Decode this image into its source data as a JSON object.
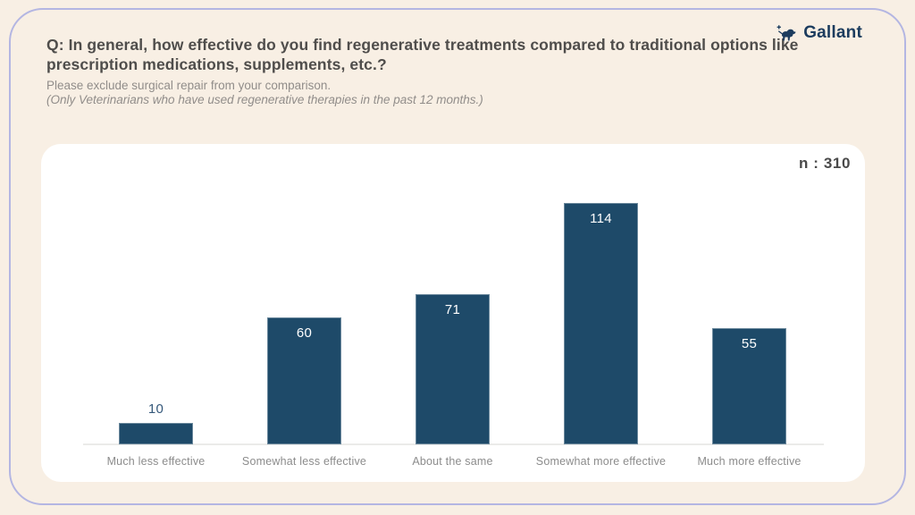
{
  "page": {
    "background_color": "#f8efe4",
    "frame_border_color": "#b4b6e2"
  },
  "header": {
    "question": "Q: In general, how effective do you find regenerative treatments compared to traditional options like prescription medications, supplements, etc.?",
    "instruction": "Please exclude surgical repair from your comparison.",
    "note": "(Only Veterinarians who have used regenerative therapies in the past 12 months.)"
  },
  "logo": {
    "text": "Gallant",
    "color": "#1c3c5e"
  },
  "chart_data": {
    "type": "bar",
    "title": "",
    "categories": [
      "Much less effective",
      "Somewhat less effective",
      "About the same",
      "Somewhat more effective",
      "Much more effective"
    ],
    "values": [
      10,
      60,
      71,
      114,
      55
    ],
    "sample_label": "n : 310",
    "sample_size": 310,
    "bar_color": "#1e4a69",
    "value_label_inside_color": "#ffffff",
    "value_label_outside_color": "#35587a",
    "category_label_color": "#8c8c8c",
    "xlabel": "",
    "ylabel": "",
    "ylim": [
      0,
      127
    ],
    "grid": false,
    "legend": false
  }
}
